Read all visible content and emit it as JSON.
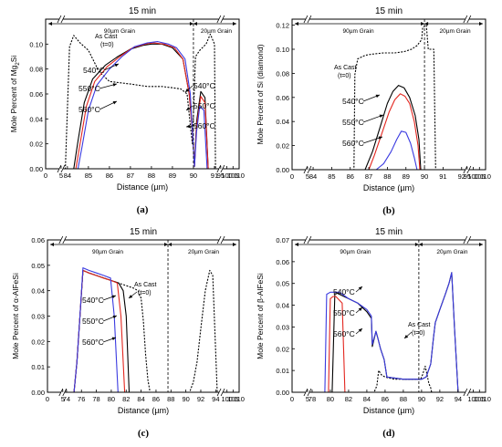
{
  "chart_data": [
    {
      "type": "line",
      "panel_label": "(a)",
      "title": "15 min",
      "xlabel": "Distance (µm)",
      "ylabel": "Mole Percent of Mg2Si",
      "ylabel_main": "Mole Percent of Mg",
      "ylabel_sub": "2",
      "ylabel_tail": "Si",
      "xticks": [
        "0",
        "5",
        "84",
        "85",
        "86",
        "87",
        "88",
        "89",
        "90",
        "91",
        "95",
        "100",
        "105",
        "110"
      ],
      "yticks": [
        "0.00",
        "0.02",
        "0.04",
        "0.06",
        "0.08",
        "0.10"
      ],
      "ylim": [
        0,
        0.12
      ],
      "grain_left": "90µm Grain",
      "grain_right": "20µm Grain",
      "annotations": [
        "As Cast",
        "(t=0)",
        "540°C",
        "550°C",
        "560°C",
        "540°C",
        "550°C",
        "560°C"
      ],
      "series": [
        {
          "name": "As Cast (t=0)",
          "color": "#000000",
          "dash": true,
          "x": [
            0,
            5,
            83.9,
            84.1,
            84.3,
            84.6,
            85.0,
            85.5,
            86.0,
            87.0,
            87.8,
            88.5,
            89.0,
            89.4,
            89.7,
            89.85,
            89.95,
            90.1,
            90.3,
            90.6,
            90.8,
            91.0,
            91.05,
            91.3,
            95,
            110
          ],
          "y": [
            0,
            0,
            0,
            0.098,
            0.107,
            0.101,
            0.095,
            0.078,
            0.07,
            0.068,
            0.066,
            0.066,
            0.065,
            0.064,
            0.06,
            0.035,
            0.02,
            0.09,
            0.095,
            0.1,
            0.108,
            0.1,
            0,
            0,
            0,
            0
          ]
        },
        {
          "name": "540°C",
          "color": "#000000",
          "dash": false,
          "x": [
            0,
            5,
            84.3,
            84.5,
            84.8,
            85.2,
            85.8,
            86.4,
            87.0,
            87.6,
            88.0,
            88.5,
            89.0,
            89.5,
            89.8,
            89.95,
            90.05,
            90.15,
            90.35,
            90.55,
            90.7,
            95,
            110
          ],
          "y": [
            0,
            0,
            0,
            0.022,
            0.053,
            0.072,
            0.083,
            0.09,
            0.096,
            0.099,
            0.1,
            0.1,
            0.097,
            0.088,
            0.06,
            0.03,
            0.002,
            0.038,
            0.062,
            0.057,
            0,
            0,
            0
          ]
        },
        {
          "name": "550°C",
          "color": "#e3261f",
          "dash": false,
          "x": [
            0,
            5,
            84.4,
            84.6,
            84.9,
            85.3,
            85.9,
            86.5,
            87.1,
            87.7,
            88.1,
            88.6,
            89.1,
            89.5,
            89.8,
            89.95,
            90.05,
            90.15,
            90.35,
            90.55,
            90.7,
            95,
            110
          ],
          "y": [
            0,
            0,
            0,
            0.02,
            0.05,
            0.07,
            0.082,
            0.09,
            0.097,
            0.1,
            0.101,
            0.1,
            0.097,
            0.088,
            0.06,
            0.03,
            0.002,
            0.035,
            0.058,
            0.053,
            0,
            0,
            0
          ]
        },
        {
          "name": "560°C",
          "color": "#3a3ae0",
          "dash": false,
          "x": [
            0,
            5,
            84.5,
            84.7,
            85.0,
            85.4,
            86.0,
            86.6,
            87.2,
            87.8,
            88.3,
            88.8,
            89.2,
            89.6,
            89.85,
            89.95,
            90.05,
            90.15,
            90.3,
            90.5,
            90.65,
            95,
            110
          ],
          "y": [
            0,
            0,
            0,
            0.018,
            0.047,
            0.067,
            0.08,
            0.09,
            0.098,
            0.101,
            0.102,
            0.1,
            0.097,
            0.088,
            0.06,
            0.03,
            0.002,
            0.03,
            0.05,
            0.047,
            0,
            0,
            0
          ]
        }
      ]
    },
    {
      "type": "line",
      "panel_label": "(b)",
      "title": "15 min",
      "xlabel": "Distance (µm)",
      "ylabel": "Mole Percent of Si (diamond)",
      "xticks": [
        "0",
        "5",
        "84",
        "85",
        "86",
        "87",
        "88",
        "89",
        "90",
        "91",
        "92",
        "95",
        "100",
        "105",
        "110"
      ],
      "yticks": [
        "0.00",
        "0.02",
        "0.04",
        "0.06",
        "0.08",
        "0.10",
        "0.12"
      ],
      "ylim": [
        0,
        0.125
      ],
      "grain_left": "90µm Grain",
      "grain_right": "20µm Grain",
      "annotations": [
        "As Cast",
        "(t=0)",
        "540°C",
        "550°C",
        "560°C"
      ],
      "series": [
        {
          "name": "As Cast (t=0)",
          "color": "#000000",
          "dash": true,
          "x": [
            0,
            5,
            86.2,
            86.25,
            86.4,
            86.8,
            87.2,
            87.8,
            88.4,
            88.9,
            89.3,
            89.6,
            89.85,
            89.9,
            90.1,
            90.2,
            90.5,
            90.6,
            95,
            110
          ],
          "y": [
            0,
            0,
            0,
            0.079,
            0.092,
            0.095,
            0.096,
            0.097,
            0.097,
            0.098,
            0.1,
            0.103,
            0.108,
            0.118,
            0.12,
            0.1,
            0.1,
            0,
            0,
            0
          ]
        },
        {
          "name": "540°C",
          "color": "#000000",
          "dash": false,
          "x": [
            0,
            5,
            86.8,
            87.2,
            87.6,
            88.0,
            88.3,
            88.6,
            88.9,
            89.2,
            89.5,
            89.7,
            89.8,
            95,
            110
          ],
          "y": [
            0,
            0,
            0,
            0.015,
            0.035,
            0.055,
            0.065,
            0.07,
            0.068,
            0.06,
            0.045,
            0.025,
            0,
            0,
            0
          ]
        },
        {
          "name": "550°C",
          "color": "#e3261f",
          "dash": false,
          "x": [
            0,
            5,
            87.0,
            87.3,
            87.7,
            88.1,
            88.4,
            88.7,
            88.95,
            89.2,
            89.45,
            89.65,
            89.75,
            95,
            110
          ],
          "y": [
            0,
            0,
            0,
            0.012,
            0.03,
            0.048,
            0.058,
            0.063,
            0.061,
            0.055,
            0.04,
            0.02,
            0,
            0,
            0
          ]
        },
        {
          "name": "560°C",
          "color": "#3a3ae0",
          "dash": false,
          "x": [
            0,
            5,
            87.4,
            87.8,
            88.2,
            88.5,
            88.75,
            89.0,
            89.25,
            89.45,
            89.6,
            95,
            110
          ],
          "y": [
            0,
            0,
            0,
            0.005,
            0.015,
            0.025,
            0.032,
            0.031,
            0.022,
            0.01,
            0,
            0,
            0
          ]
        }
      ]
    },
    {
      "type": "line",
      "panel_label": "(c)",
      "title": "15 min",
      "xlabel": "Distance (µm)",
      "ylabel": "Mole Percent of α-AlFeSi",
      "xticks": [
        "0",
        "5",
        "74",
        "76",
        "78",
        "80",
        "82",
        "84",
        "86",
        "88",
        "90",
        "92",
        "94",
        "100",
        "105",
        "110"
      ],
      "yticks": [
        "0.00",
        "0.01",
        "0.02",
        "0.03",
        "0.04",
        "0.05",
        "0.06"
      ],
      "ylim": [
        0,
        0.06
      ],
      "grain_left": "90µm Grain",
      "grain_right": "20µm Grain",
      "annotations": [
        "As Cast",
        "(t=0)",
        "540°C",
        "550°C",
        "560°C"
      ],
      "series": [
        {
          "name": "As Cast (t=0)",
          "color": "#000000",
          "dash": true,
          "x": [
            0,
            5,
            75.0,
            75.4,
            75.8,
            76.2,
            77,
            78,
            79,
            80,
            81,
            82,
            83,
            83.6,
            84.0,
            84.3,
            84.6,
            84.9,
            85.2,
            90.5,
            91.0,
            91.5,
            92.0,
            92.6,
            93.2,
            93.6,
            94.2,
            100,
            110
          ],
          "y": [
            0,
            0,
            0,
            0.012,
            0.03,
            0.048,
            0.047,
            0.046,
            0.045,
            0.044,
            0.043,
            0.042,
            0.041,
            0.04,
            0.037,
            0.028,
            0.015,
            0.005,
            0,
            0,
            0.004,
            0.012,
            0.025,
            0.04,
            0.048,
            0.046,
            0,
            0,
            0
          ]
        },
        {
          "name": "540°C",
          "color": "#000000",
          "dash": false,
          "x": [
            0,
            5,
            75.0,
            75.4,
            75.8,
            76.2,
            77,
            78,
            79,
            80,
            81,
            81.6,
            82.0,
            82.4,
            100,
            110
          ],
          "y": [
            0,
            0,
            0,
            0.012,
            0.03,
            0.048,
            0.047,
            0.046,
            0.045,
            0.044,
            0.043,
            0.04,
            0.03,
            0,
            0,
            0
          ]
        },
        {
          "name": "550°C",
          "color": "#e3261f",
          "dash": false,
          "x": [
            0,
            5,
            75.0,
            75.4,
            75.8,
            76.2,
            77,
            78,
            79,
            80,
            80.8,
            81.3,
            81.8,
            100,
            110
          ],
          "y": [
            0,
            0,
            0,
            0.012,
            0.03,
            0.048,
            0.047,
            0.046,
            0.045,
            0.044,
            0.043,
            0.03,
            0,
            0,
            0
          ]
        },
        {
          "name": "560°C",
          "color": "#3a3ae0",
          "dash": false,
          "x": [
            0,
            5,
            75.0,
            75.4,
            75.8,
            76.2,
            77,
            78,
            79,
            79.9,
            80.4,
            80.9,
            100,
            110
          ],
          "y": [
            0,
            0,
            0,
            0.012,
            0.03,
            0.049,
            0.048,
            0.047,
            0.046,
            0.045,
            0.03,
            0,
            0,
            0
          ]
        }
      ]
    },
    {
      "type": "line",
      "panel_label": "(d)",
      "title": "15 min",
      "xlabel": "Distance (µm)",
      "ylabel": "Mole Percent of β-AlFeSi",
      "xticks": [
        "0",
        "5",
        "78",
        "80",
        "82",
        "84",
        "86",
        "88",
        "90",
        "92",
        "94",
        "100",
        "105",
        "110"
      ],
      "yticks": [
        "0.00",
        "0.01",
        "0.02",
        "0.03",
        "0.04",
        "0.05",
        "0.06",
        "0.07"
      ],
      "ylim": [
        0,
        0.07
      ],
      "grain_left": "90µm Grain",
      "grain_right": "20µm Grain",
      "annotations": [
        "As Cast",
        "(t=0)",
        "540°C",
        "550°C",
        "560°C"
      ],
      "series": [
        {
          "name": "As Cast (t=0)",
          "color": "#000000",
          "dash": true,
          "x": [
            0,
            5,
            84.8,
            85.1,
            85.3,
            85.6,
            86,
            87,
            88,
            89,
            89.5,
            89.9,
            90.1,
            90.4,
            90.6,
            90.8,
            91.0,
            91.1,
            100,
            110
          ],
          "y": [
            0,
            0,
            0,
            0.003,
            0.01,
            0.008,
            0.007,
            0.006,
            0.006,
            0.006,
            0.006,
            0.006,
            0.008,
            0.012,
            0.008,
            0.004,
            0.002,
            0,
            0,
            0
          ]
        },
        {
          "name": "540°C",
          "color": "#000000",
          "dash": false,
          "x": [
            0,
            5,
            80.2,
            80.5,
            81,
            82,
            83,
            84,
            84.5,
            84.6,
            85.0,
            85.2,
            85.5,
            85.9,
            86.2,
            88,
            90,
            90.5,
            91,
            91.3,
            91.5,
            92,
            92.6,
            93,
            93.3,
            93.6,
            94,
            100,
            110
          ],
          "y": [
            0,
            0,
            0,
            0.046,
            0.045,
            0.043,
            0.041,
            0.037,
            0.034,
            0.021,
            0.028,
            0.025,
            0.02,
            0.015,
            0.007,
            0.006,
            0.006,
            0.007,
            0.013,
            0.025,
            0.032,
            0.038,
            0.045,
            0.05,
            0.055,
            0.03,
            0,
            0,
            0
          ]
        },
        {
          "name": "550°C",
          "color": "#e3261f",
          "dash": false,
          "x": [
            0,
            5,
            79.8,
            80.0,
            80.3,
            80.6,
            81.3,
            81.6,
            100,
            110
          ],
          "y": [
            0,
            0,
            0,
            0.043,
            0.044,
            0.044,
            0.041,
            0,
            0,
            0
          ]
        },
        {
          "name": "560°C",
          "color": "#3a3ae0",
          "dash": false,
          "x": [
            0,
            5,
            79.4,
            79.6,
            80,
            81,
            82,
            83,
            84,
            84.5,
            84.6,
            85.0,
            85.2,
            85.5,
            85.9,
            86.2,
            88,
            90,
            90.5,
            91,
            91.3,
            91.5,
            92,
            92.6,
            93,
            93.3,
            93.6,
            94,
            100,
            110
          ],
          "y": [
            0,
            0,
            0,
            0.045,
            0.046,
            0.046,
            0.043,
            0.041,
            0.038,
            0.035,
            0.022,
            0.028,
            0.025,
            0.02,
            0.015,
            0.007,
            0.006,
            0.006,
            0.007,
            0.013,
            0.025,
            0.032,
            0.038,
            0.045,
            0.05,
            0.055,
            0.03,
            0,
            0,
            0
          ]
        }
      ]
    }
  ]
}
